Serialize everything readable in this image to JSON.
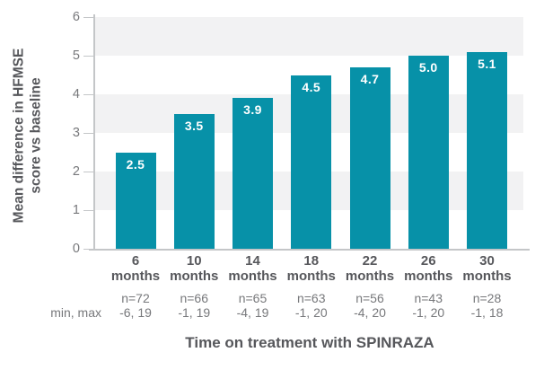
{
  "chart_data": {
    "type": "bar",
    "title": "",
    "xlabel": "Time on treatment with SPINRAZA",
    "ylabel": "Mean difference in HFMSE score vs baseline",
    "ylabel_lines": [
      "Mean difference in HFMSE",
      "score vs baseline"
    ],
    "ylim": [
      0,
      6
    ],
    "yticks": [
      "0",
      "1",
      "2",
      "3",
      "4",
      "5",
      "6"
    ],
    "grid": "alternating horizontal gray bands on 1-2, 3-4, 5-6",
    "gray_bands": [
      [
        1,
        2
      ],
      [
        3,
        4
      ],
      [
        5,
        6
      ]
    ],
    "legend_position": "none",
    "categories": [
      "6 months",
      "10 months",
      "14 months",
      "18 months",
      "22 months",
      "26 months",
      "30 months"
    ],
    "month_numbers": [
      "6",
      "10",
      "14",
      "18",
      "22",
      "26",
      "30"
    ],
    "month_unit": "months",
    "values": [
      2.5,
      3.5,
      3.9,
      4.5,
      4.7,
      5.0,
      5.1
    ],
    "value_labels": [
      "2.5",
      "3.5",
      "3.9",
      "4.5",
      "4.7",
      "5.0",
      "5.1"
    ],
    "n_labels": [
      "n=72",
      "n=66",
      "n=65",
      "n=63",
      "n=56",
      "n=43",
      "n=28"
    ],
    "min_max_labels": [
      "-6, 19",
      "-1, 19",
      "-4, 19",
      "-1, 20",
      "-4, 20",
      "-1, 20",
      "-1, 18"
    ],
    "min_max_row_label": "min, max"
  },
  "colors": {
    "bar": "#0791A8",
    "band": "#F2F2F3",
    "axis_line": "#C4C6C8",
    "tick_label": "#77787B",
    "dark_text": "#56575B",
    "muted_text": "#77787B",
    "bar_value_label": "#FFFFFF",
    "background": "#FFFFFF"
  }
}
